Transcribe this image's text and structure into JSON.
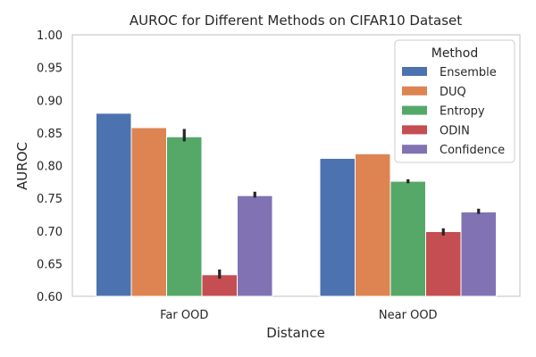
{
  "chart_data": {
    "type": "bar",
    "title": "AUROC for Different Methods on CIFAR10 Dataset",
    "xlabel": "Distance",
    "ylabel": "AUROC",
    "categories": [
      "Far OOD",
      "Near OOD"
    ],
    "ylim": [
      0.6,
      1.0
    ],
    "yticks": [
      0.6,
      0.65,
      0.7,
      0.75,
      0.8,
      0.85,
      0.9,
      0.95,
      1.0
    ],
    "grid": false,
    "legend": {
      "title": "Method",
      "placement": "top-right"
    },
    "series": [
      {
        "name": "Ensemble",
        "color": "#4c72b0",
        "values": [
          0.88,
          0.811
        ],
        "err": [
          null,
          null
        ]
      },
      {
        "name": "DUQ",
        "color": "#dd8452",
        "values": [
          0.858,
          0.818
        ],
        "err": [
          null,
          null
        ]
      },
      {
        "name": "Entropy",
        "color": "#55a868",
        "values": [
          0.844,
          0.776
        ],
        "err": [
          [
            0.837,
            0.856
          ],
          [
            0.773,
            0.779
          ]
        ]
      },
      {
        "name": "ODIN",
        "color": "#c44e52",
        "values": [
          0.633,
          0.699
        ],
        "err": [
          [
            0.627,
            0.641
          ],
          [
            0.693,
            0.704
          ]
        ]
      },
      {
        "name": "Confidence",
        "color": "#8172b3",
        "values": [
          0.754,
          0.729
        ],
        "err": [
          [
            0.751,
            0.76
          ],
          [
            0.726,
            0.734
          ]
        ]
      }
    ]
  }
}
